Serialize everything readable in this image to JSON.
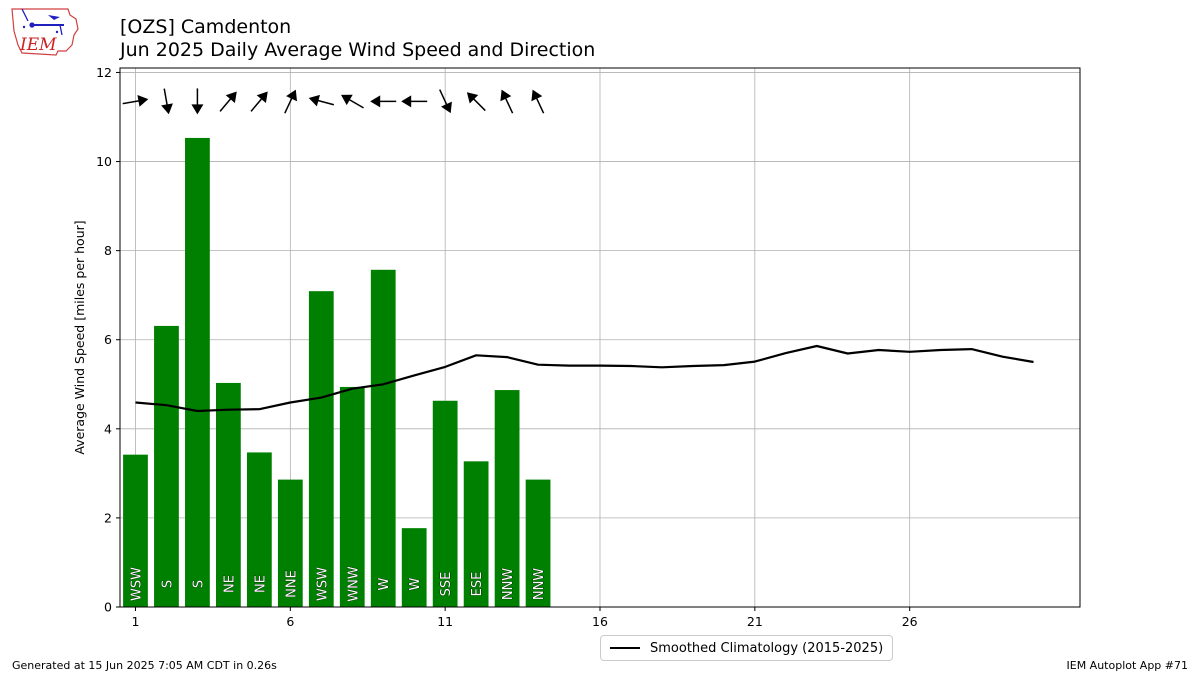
{
  "header": {
    "title_line1": "[OZS] Camdenton",
    "title_line2": "Jun 2025 Daily Average Wind Speed and Direction"
  },
  "logo": {
    "text": "IEM"
  },
  "footer": {
    "generated": "Generated at 15 Jun 2025 7:05 AM CDT in 0.26s",
    "app": "IEM Autoplot App #71"
  },
  "legend": {
    "label": "Smoothed Climatology (2015-2025)"
  },
  "colors": {
    "bar": "#008000",
    "climatology": "#000000",
    "grid": "#b0b0b0"
  },
  "chart_data": {
    "type": "bar",
    "ylabel": "Average Wind Speed [miles per hour]",
    "xlabel": "",
    "xlim": [
      0.5,
      31.5
    ],
    "ylim": [
      0,
      12.1
    ],
    "xticks": [
      1,
      6,
      11,
      16,
      21,
      26
    ],
    "yticks": [
      0,
      2,
      4,
      6,
      8,
      10,
      12
    ],
    "grid": true,
    "legend_position": "bottom-center",
    "bars": {
      "days": [
        1,
        2,
        3,
        4,
        5,
        6,
        7,
        8,
        9,
        10,
        11,
        12,
        13,
        14
      ],
      "values": [
        3.42,
        6.31,
        10.53,
        5.03,
        3.47,
        2.86,
        7.09,
        4.94,
        7.57,
        1.77,
        4.63,
        3.27,
        4.87,
        2.86
      ],
      "directions": [
        "WSW",
        "S",
        "S",
        "NE",
        "NE",
        "NNE",
        "WSW",
        "WNW",
        "W",
        "W",
        "SSE",
        "ESE",
        "NNW",
        "NNW"
      ],
      "arrow_angles_deg": [
        80,
        170,
        180,
        40,
        40,
        25,
        285,
        300,
        270,
        270,
        155,
        315,
        335,
        335
      ]
    },
    "series": [
      {
        "name": "Smoothed Climatology (2015-2025)",
        "x": [
          1,
          2,
          3,
          4,
          5,
          6,
          7,
          8,
          9,
          10,
          11,
          12,
          13,
          14,
          15,
          16,
          17,
          18,
          19,
          20,
          21,
          22,
          23,
          24,
          25,
          26,
          27,
          28,
          29,
          30
        ],
        "values": [
          4.59,
          4.53,
          4.4,
          4.43,
          4.44,
          4.59,
          4.7,
          4.9,
          5.0,
          5.2,
          5.39,
          5.65,
          5.61,
          5.44,
          5.42,
          5.42,
          5.41,
          5.38,
          5.41,
          5.43,
          5.51,
          5.7,
          5.86,
          5.69,
          5.77,
          5.73,
          5.77,
          5.79,
          5.62,
          5.5
        ]
      }
    ]
  }
}
